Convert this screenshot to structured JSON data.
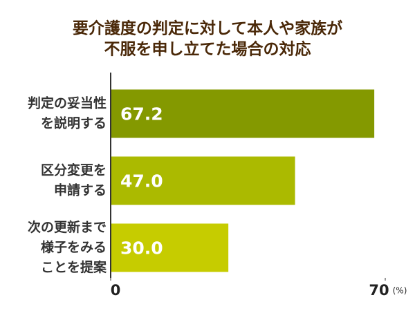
{
  "chart_data": {
    "type": "bar",
    "orientation": "horizontal",
    "title": [
      "要介護度の判定に対して本人や家族が",
      "不服を申し立てた場合の対応"
    ],
    "categories": [
      [
        "判定の妥当性",
        "を説明する"
      ],
      [
        "区分変更を",
        "申請する"
      ],
      [
        "次の更新まで",
        "様子をみる",
        "ことを提案"
      ]
    ],
    "values": [
      67.2,
      47.0,
      30.0
    ],
    "value_labels": [
      "67.2",
      "47.0",
      "30.0"
    ],
    "colors": [
      "#849900",
      "#abba00",
      "#c6cc00"
    ],
    "xlim": [
      0,
      70
    ],
    "xticks": [
      0,
      70
    ],
    "x_unit": "(%)"
  }
}
